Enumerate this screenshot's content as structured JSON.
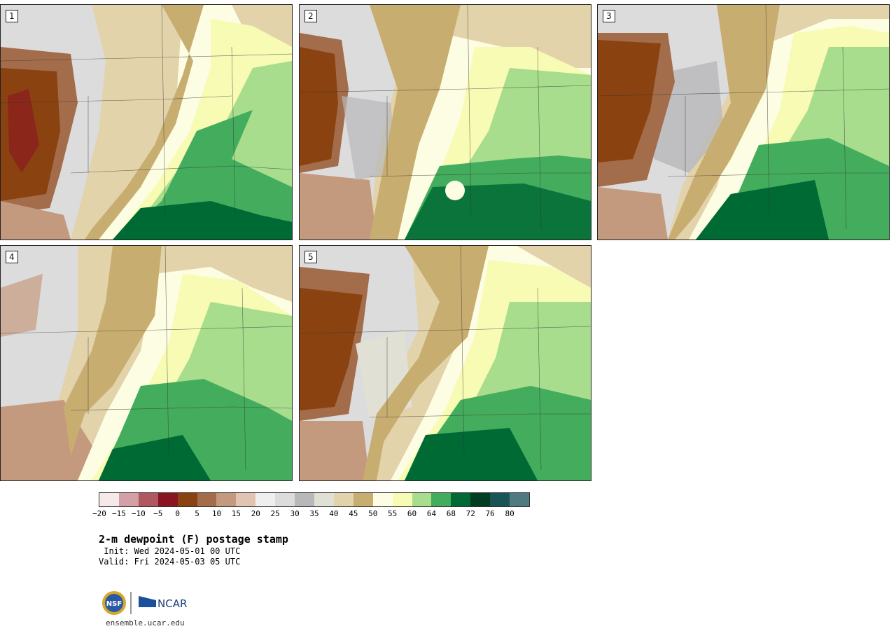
{
  "map": {
    "title": "2-m dewpoint (F) postage stamp",
    "init": " Init: Wed 2024-05-01 00 UTC",
    "valid": "Valid: Fri 2024-05-03 05 UTC",
    "members": [
      {
        "label": "1"
      },
      {
        "label": "2"
      },
      {
        "label": "3"
      },
      {
        "label": "4"
      },
      {
        "label": "5"
      }
    ]
  },
  "colorbar": {
    "colors": [
      "#f5e9ea",
      "#d49fa6",
      "#b0585f",
      "#8a1522",
      "#8a4210",
      "#a36c4a",
      "#c49a7e",
      "#e2c4b3",
      "#efeff0",
      "#dcdcdd",
      "#b8b8ba",
      "#e0e0d5",
      "#e3d3ab",
      "#c8ad70",
      "#fdfde3",
      "#f8fbb4",
      "#a8dd8d",
      "#43ad5d",
      "#006a35",
      "#003d22",
      "#195557",
      "#507a82"
    ],
    "ticks": [
      "−20",
      "−15",
      "−10",
      "−5",
      "0",
      "5",
      "10",
      "15",
      "20",
      "25",
      "30",
      "35",
      "40",
      "45",
      "50",
      "55",
      "60",
      "64",
      "68",
      "72",
      "76",
      "80"
    ]
  },
  "logo": {
    "nsf": "NSF",
    "ncar": "NCAR"
  },
  "footer": {
    "site": "ensemble.ucar.edu"
  }
}
